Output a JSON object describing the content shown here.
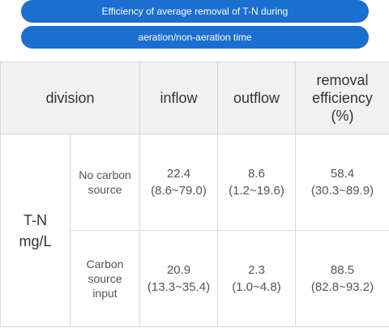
{
  "title": {
    "line1": "Efficiency of average removal of T-N during",
    "line2": "aeration/non-aeration time"
  },
  "table": {
    "headers": {
      "division": "division",
      "inflow": "inflow",
      "outflow": "outflow",
      "removal_1": "removal",
      "removal_2": "efficiency",
      "removal_3": "(%)"
    },
    "group": {
      "line1": "T-N",
      "line2": "mg/L"
    },
    "rows": [
      {
        "label_1": "No carbon",
        "label_2": "source",
        "label_3": "",
        "inflow_value": "22.4",
        "inflow_range": "(8.6~79.0)",
        "outflow_value": "8.6",
        "outflow_range": "(1.2~19.6)",
        "removal_value": "58.4",
        "removal_range": "(30.3~89.9)"
      },
      {
        "label_1": "Carbon",
        "label_2": "source",
        "label_3": "input",
        "inflow_value": "20.9",
        "inflow_range": "(13.3~35.4)",
        "outflow_value": "2.3",
        "outflow_range": "(1.0~4.8)",
        "removal_value": "88.5",
        "removal_range": "(82.8~93.2)"
      }
    ]
  }
}
